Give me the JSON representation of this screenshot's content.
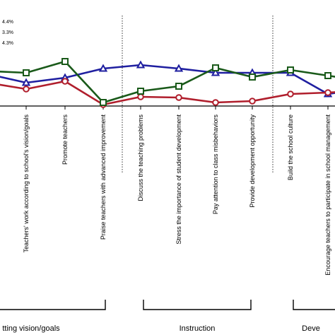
{
  "chart_data": {
    "type": "line",
    "categories": [
      "",
      "Teachers' work according to school's vision/goals",
      "Promote teachers",
      "Praise teachers with advanced improvement",
      "Discuss the teaching problems",
      "Stress the importance of student development",
      "Pay attention to class misbehaviors",
      "Provide development opportunity",
      "Build the school culture",
      "Encourage teachers to participate in school management",
      ""
    ],
    "series": [
      {
        "name": "",
        "color": "#1f1fa0",
        "marker": "triangle",
        "values": [
          102,
          117,
          110,
          97,
          92,
          97,
          103,
          103,
          103,
          133,
          125
        ]
      },
      {
        "name": "",
        "color": "#b01e2c",
        "marker": "circle",
        "values": [
          115,
          126,
          115,
          148,
          137,
          138,
          145,
          143,
          133,
          131,
          128
        ]
      },
      {
        "name": "",
        "color": "#1a5a1a",
        "marker": "square",
        "values": [
          100,
          103,
          87,
          145,
          129,
          122,
          96,
          109,
          99,
          107,
          116
        ]
      }
    ],
    "legend_entries": [
      "4.4%",
      "3.3%",
      "4.3%"
    ],
    "groups": [
      {
        "label": "tting vision/goals",
        "divider_after": "Praise teachers with advanced improvement"
      },
      {
        "label": "Instruction",
        "divider_after": "Provide development opportunity"
      },
      {
        "label": "Deve"
      }
    ],
    "grid": false,
    "legend_position": "top-left"
  },
  "colors": {
    "axis": "#000000",
    "divider": "#333333"
  }
}
